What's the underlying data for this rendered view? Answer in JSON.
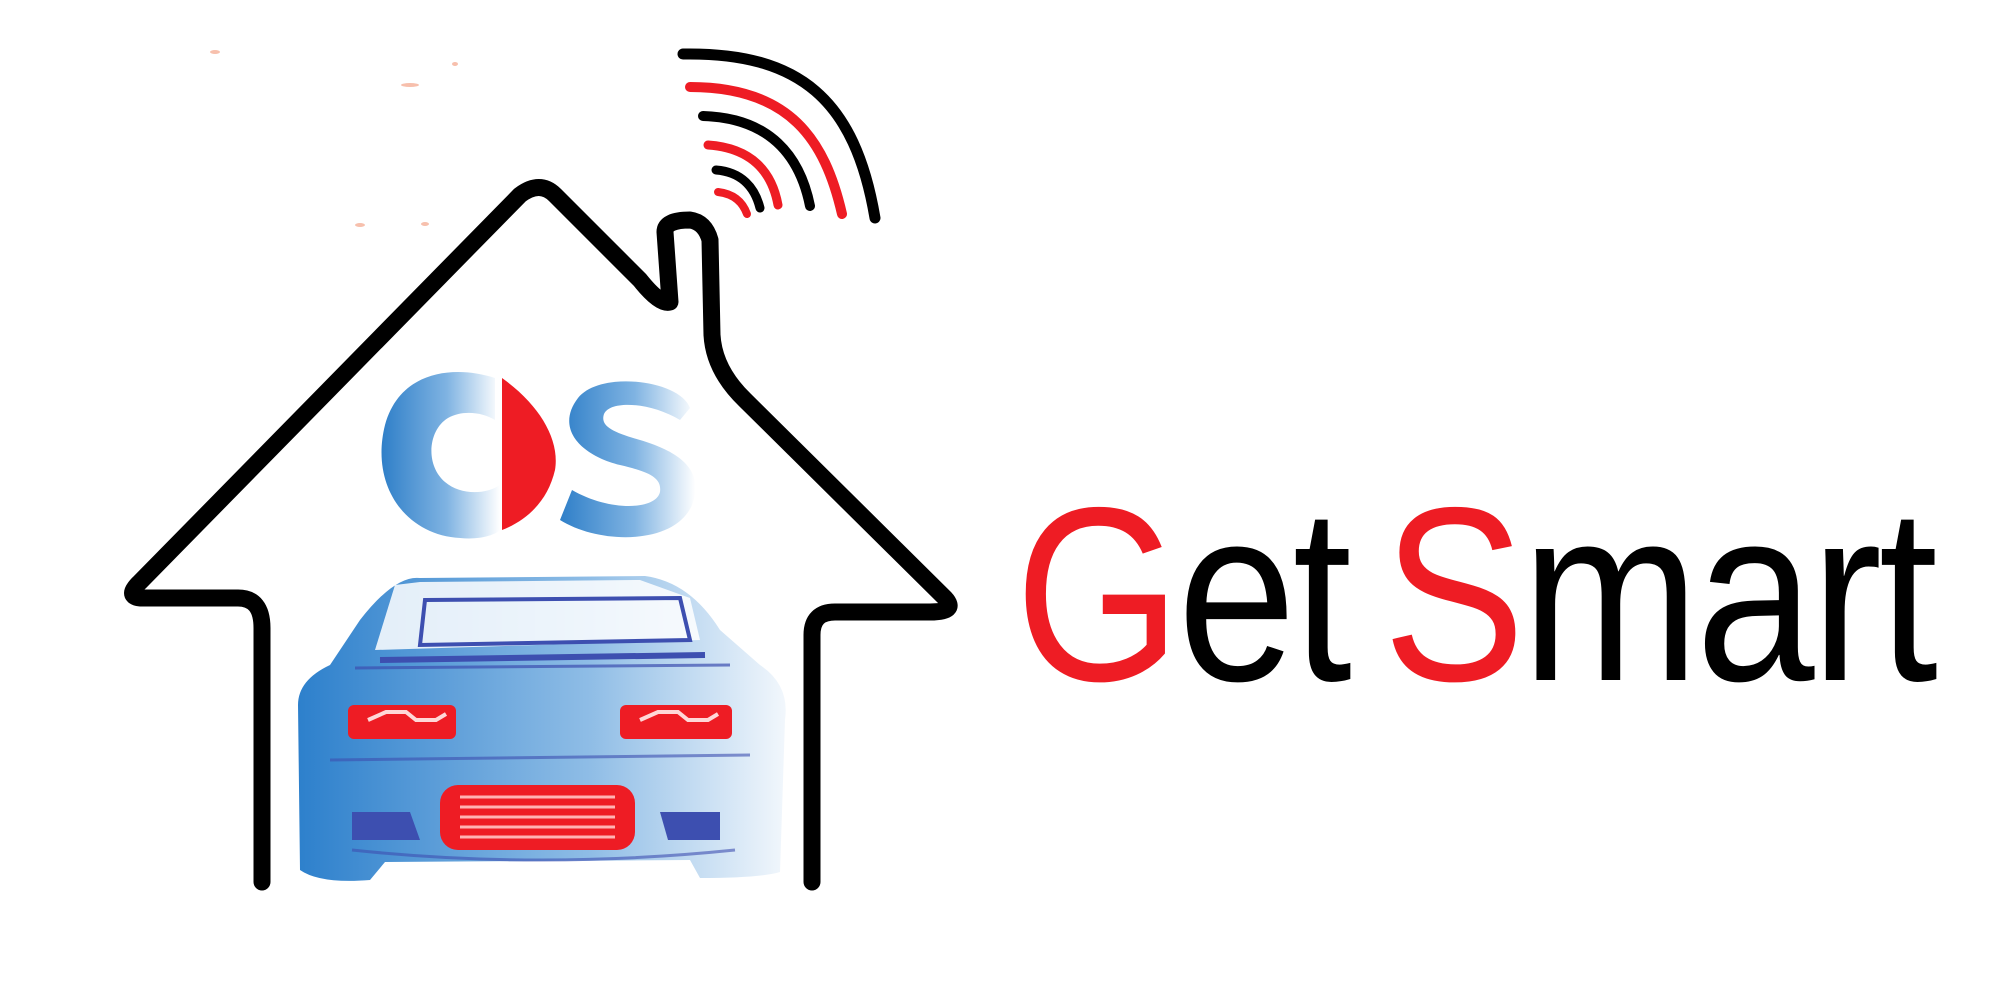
{
  "brand": {
    "emblem_text": "CS",
    "word1_initial": "G",
    "word1_rest": "et",
    "word2_initial": "S",
    "word2_rest": "mart"
  },
  "icons": [
    "house-outline-icon",
    "wifi-signal-icon",
    "car-front-icon",
    "cs-monogram-icon"
  ],
  "colors": {
    "accent_red": "#ee1c24",
    "outline_black": "#000000",
    "car_blue": "#3a8bd0",
    "car_blue_light": "#cfe2f4",
    "car_dark_blue": "#3d4fb0",
    "background": "#ffffff"
  }
}
